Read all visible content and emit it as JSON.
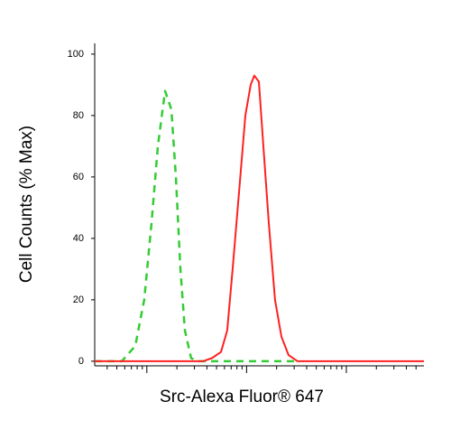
{
  "chart_data": {
    "type": "line",
    "ylabel": "Cell Counts (% Max)",
    "xlabel": "Src-Alexa Fluor® 647",
    "xscale": "log",
    "xlim": [
      300,
      600000
    ],
    "ylim": [
      -1.5,
      103.5
    ],
    "yticks": [
      0,
      20,
      40,
      60,
      80,
      100
    ],
    "xticks": [
      1000,
      10000,
      100000
    ],
    "xminor_ticks": [
      400,
      500,
      600,
      700,
      800,
      900,
      2000,
      3000,
      4000,
      5000,
      6000,
      7000,
      8000,
      9000,
      20000,
      30000,
      40000,
      50000,
      60000,
      70000,
      80000,
      90000,
      200000,
      300000,
      400000,
      500000
    ],
    "series": [
      {
        "color": "#33cc33",
        "dashed": true,
        "x": [
          300,
          560,
          765,
          942,
          1114,
          1288,
          1521,
          1761,
          1954,
          2167,
          2405,
          2782,
          3289,
          32460
        ],
        "values": [
          0,
          0,
          5,
          20,
          45,
          70,
          88,
          82,
          60,
          30,
          10,
          1,
          0,
          0
        ]
      },
      {
        "color": "#ff2020",
        "dashed": false,
        "x": [
          300,
          3648,
          4490,
          5532,
          6399,
          7248,
          8391,
          9708,
          10995,
          11943,
          13264,
          14727,
          16680,
          19290,
          22350,
          26370,
          32460,
          600000
        ],
        "values": [
          0,
          0,
          1,
          3,
          10,
          30,
          55,
          80,
          90,
          93,
          91,
          70,
          45,
          20,
          8,
          2,
          0,
          0
        ]
      }
    ]
  }
}
